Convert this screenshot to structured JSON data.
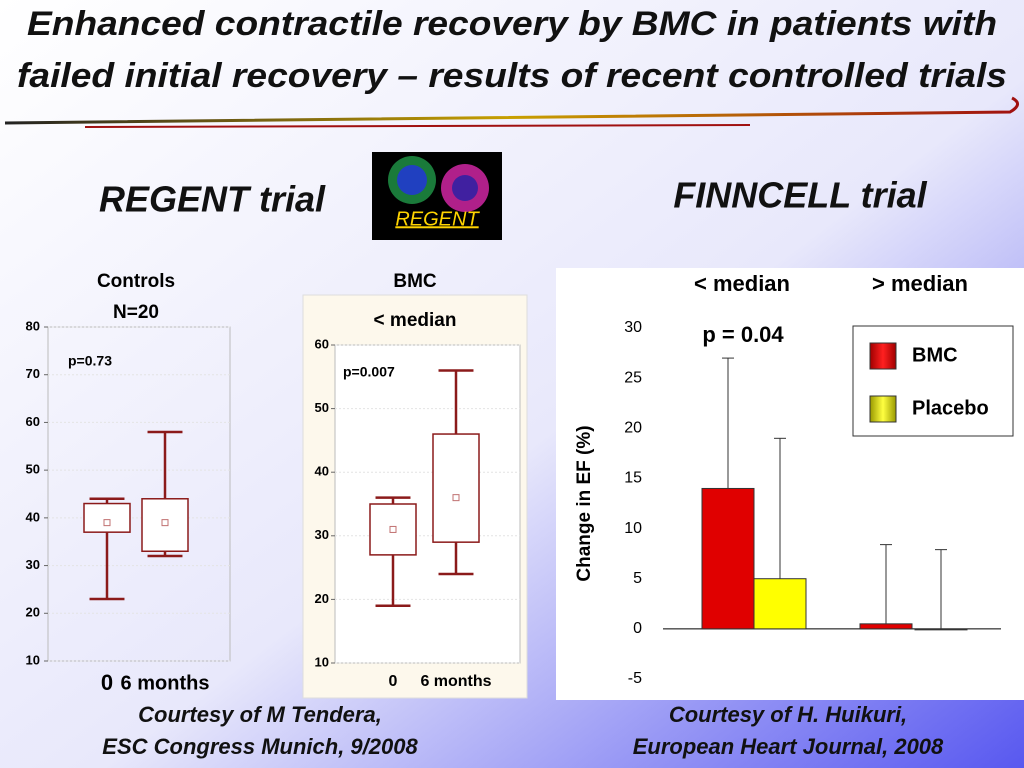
{
  "slide": {
    "title": [
      "Enhanced contractile recovery by BMC in patients with",
      "failed initial recovery – results of recent controlled trials"
    ],
    "left_heading": "REGENT trial",
    "image_label": "REGENT",
    "right_heading": "FINNCELL trial",
    "left_credit": [
      "Courtesy of M Tendera,",
      "ESC Congress Munich, 9/2008"
    ],
    "right_credit": [
      "Courtesy of H. Huikuri,",
      "European Heart Journal, 2008"
    ]
  },
  "chart_data": [
    {
      "type": "box",
      "title": [
        "Controls",
        "N=20"
      ],
      "annotation": "p=0.73",
      "categories": [
        "0",
        "6 months"
      ],
      "boxes": [
        {
          "low": 23,
          "q1": 37,
          "mid": 39,
          "q3": 43,
          "high": 44
        },
        {
          "low": 32,
          "q1": 33,
          "mid": 39,
          "q3": 44,
          "high": 58
        }
      ],
      "color": "#8b1a1a",
      "ylim": [
        10,
        80
      ],
      "yticks": [
        10,
        20,
        30,
        40,
        50,
        60,
        70,
        80
      ],
      "grid": true
    },
    {
      "type": "box",
      "title": [
        "BMC"
      ],
      "subtitle": "< median",
      "annotation": "p=0.007",
      "categories": [
        "0",
        "6 months"
      ],
      "boxes": [
        {
          "low": 19,
          "q1": 27,
          "mid": 31,
          "q3": 35,
          "high": 36
        },
        {
          "low": 24,
          "q1": 29,
          "mid": 36,
          "q3": 46,
          "high": 56
        }
      ],
      "color": "#8b1a1a",
      "ylim": [
        10,
        60
      ],
      "yticks": [
        10,
        20,
        30,
        40,
        50,
        60
      ],
      "grid": true
    },
    {
      "type": "bar",
      "ylabel": "Change in EF (%)",
      "annotation": "p = 0.04",
      "categories": [
        "< median",
        "> median"
      ],
      "series": [
        {
          "name": "BMC",
          "color": "#e00000",
          "values": [
            14,
            0.5
          ],
          "errors": [
            13,
            7.9
          ]
        },
        {
          "name": "Placebo",
          "color": "#ffff00",
          "values": [
            5,
            0
          ],
          "errors": [
            14,
            7.9
          ]
        }
      ],
      "ylim": [
        -5,
        30
      ],
      "yticks": [
        -5,
        0,
        5,
        10,
        15,
        20,
        25,
        30
      ],
      "legend": "top-right"
    }
  ]
}
